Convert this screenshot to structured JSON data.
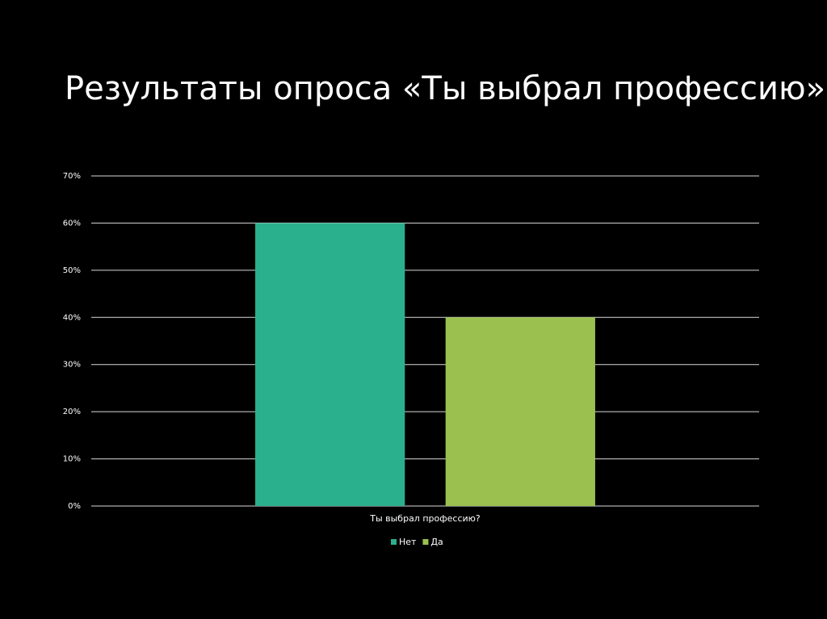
{
  "chart_data": {
    "type": "bar",
    "title": "Результаты опроса «Ты выбрал профессию»",
    "categories": [
      "Ты выбрал профессию?"
    ],
    "series": [
      {
        "name": "Нет",
        "color": "#2bb08e",
        "values": [
          60
        ]
      },
      {
        "name": "Да",
        "color": "#9bc04f",
        "values": [
          40
        ]
      }
    ],
    "ylim": [
      0,
      70
    ],
    "yticks": [
      {
        "value": 0,
        "label": "0%"
      },
      {
        "value": 10,
        "label": "10%"
      },
      {
        "value": 20,
        "label": "20%"
      },
      {
        "value": 30,
        "label": "30%"
      },
      {
        "value": 40,
        "label": "40%"
      },
      {
        "value": 50,
        "label": "50%"
      },
      {
        "value": 60,
        "label": "60%"
      },
      {
        "value": 70,
        "label": "70%"
      }
    ],
    "grid": true,
    "legend": "bottom"
  }
}
